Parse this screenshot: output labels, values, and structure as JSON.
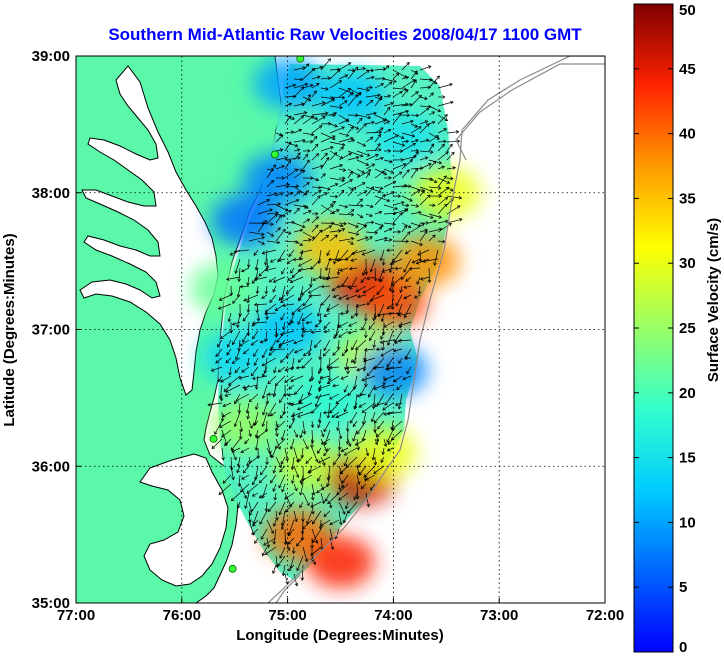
{
  "chart_data": {
    "type": "heatmap",
    "title": "Southern Mid-Atlantic Raw Velocities 2008/04/17 1100 GMT",
    "xlabel": "Longitude (Degrees:Minutes)",
    "ylabel": "Latitude (Degrees:Minutes)",
    "x_ticks": [
      {
        "value": -77,
        "label": "77:00"
      },
      {
        "value": -76,
        "label": "76:00"
      },
      {
        "value": -75,
        "label": "75:00"
      },
      {
        "value": -74,
        "label": "74:00"
      },
      {
        "value": -73,
        "label": "73:00"
      },
      {
        "value": -72,
        "label": "72:00"
      }
    ],
    "y_ticks": [
      {
        "value": 35,
        "label": "35:00"
      },
      {
        "value": 36,
        "label": "36:00"
      },
      {
        "value": 37,
        "label": "37:00"
      },
      {
        "value": 38,
        "label": "38:00"
      },
      {
        "value": 39,
        "label": "39:00"
      }
    ],
    "xlim": [
      -77,
      -72
    ],
    "ylim": [
      35,
      39
    ],
    "grid": true,
    "colorbar": {
      "label": "Surface Velocity (cm/s)",
      "range": [
        0,
        50
      ],
      "ticks": [
        0,
        5,
        10,
        15,
        20,
        25,
        30,
        35,
        40,
        45,
        50
      ],
      "colormap": "jet"
    },
    "speed_regions": [
      {
        "lon": -74.3,
        "lat": 37.35,
        "speed": 45
      },
      {
        "lon": -74.0,
        "lat": 37.2,
        "speed": 42
      },
      {
        "lon": -73.7,
        "lat": 37.5,
        "speed": 38
      },
      {
        "lon": -73.5,
        "lat": 38.0,
        "speed": 30
      },
      {
        "lon": -74.6,
        "lat": 37.6,
        "speed": 35
      },
      {
        "lon": -74.2,
        "lat": 36.8,
        "speed": 28
      },
      {
        "lon": -75.4,
        "lat": 36.3,
        "speed": 25
      },
      {
        "lon": -74.8,
        "lat": 36.0,
        "speed": 28
      },
      {
        "lon": -74.9,
        "lat": 35.5,
        "speed": 40
      },
      {
        "lon": -74.5,
        "lat": 35.3,
        "speed": 44
      },
      {
        "lon": -74.3,
        "lat": 35.9,
        "speed": 46
      },
      {
        "lon": -74.1,
        "lat": 36.1,
        "speed": 30
      },
      {
        "lon": -75.0,
        "lat": 38.8,
        "speed": 10
      },
      {
        "lon": -74.4,
        "lat": 38.7,
        "speed": 12
      },
      {
        "lon": -75.1,
        "lat": 38.1,
        "speed": 8
      },
      {
        "lon": -75.4,
        "lat": 37.8,
        "speed": 7
      },
      {
        "lon": -73.9,
        "lat": 38.4,
        "speed": 15
      },
      {
        "lon": -75.0,
        "lat": 37.0,
        "speed": 12
      },
      {
        "lon": -74.0,
        "lat": 36.7,
        "speed": 8
      },
      {
        "lon": -75.5,
        "lat": 36.8,
        "speed": 14
      },
      {
        "lon": -74.6,
        "lat": 36.5,
        "speed": 18
      },
      {
        "lon": -75.6,
        "lat": 37.3,
        "speed": 22
      }
    ],
    "station_markers": [
      {
        "lon": -74.88,
        "lat": 38.98
      },
      {
        "lon": -75.12,
        "lat": 38.28
      },
      {
        "lon": -75.7,
        "lat": 36.2
      },
      {
        "lon": -75.52,
        "lat": 35.25
      }
    ]
  }
}
